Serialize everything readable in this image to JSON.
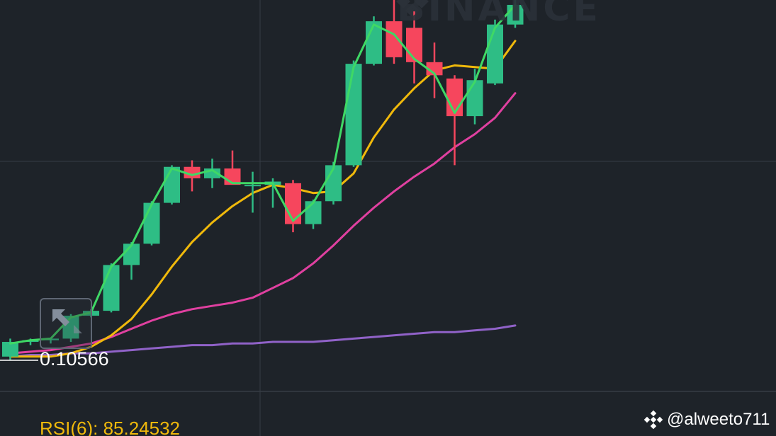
{
  "watermark": {
    "text": "BINANCE"
  },
  "price_label": "0.10566",
  "indicator": {
    "rsi_label": "RSI(6): 85.24532"
  },
  "handle": {
    "text": "@alweeto711"
  },
  "colors": {
    "background": "#1e2329",
    "up": "#2ebd85",
    "down": "#f6465d",
    "ma_fast": "#3fd865",
    "ma_mid": "#f0b90b",
    "ma_slow": "#e040a0",
    "ma_long": "#9062c8",
    "grid": "#363c45"
  },
  "chart_data": {
    "type": "candlestick",
    "candles": [
      {
        "o": 0.1057,
        "h": 0.1068,
        "l": 0.1055,
        "c": 0.1066
      },
      {
        "o": 0.1066,
        "h": 0.1068,
        "l": 0.1064,
        "c": 0.1067
      },
      {
        "o": 0.1067,
        "h": 0.1068,
        "l": 0.1065,
        "c": 0.1068
      },
      {
        "o": 0.1068,
        "h": 0.1083,
        "l": 0.1066,
        "c": 0.1082
      },
      {
        "o": 0.1082,
        "h": 0.1086,
        "l": 0.1081,
        "c": 0.1085
      },
      {
        "o": 0.1085,
        "h": 0.1114,
        "l": 0.1084,
        "c": 0.1113
      },
      {
        "o": 0.1113,
        "h": 0.1127,
        "l": 0.1104,
        "c": 0.1126
      },
      {
        "o": 0.1126,
        "h": 0.1152,
        "l": 0.1125,
        "c": 0.1151
      },
      {
        "o": 0.1151,
        "h": 0.1174,
        "l": 0.115,
        "c": 0.1173
      },
      {
        "o": 0.1173,
        "h": 0.1177,
        "l": 0.1158,
        "c": 0.1166
      },
      {
        "o": 0.1166,
        "h": 0.1178,
        "l": 0.116,
        "c": 0.1172
      },
      {
        "o": 0.1172,
        "h": 0.1183,
        "l": 0.1163,
        "c": 0.1162
      },
      {
        "o": 0.1162,
        "h": 0.117,
        "l": 0.1145,
        "c": 0.1162
      },
      {
        "o": 0.1162,
        "h": 0.1166,
        "l": 0.1148,
        "c": 0.1164
      },
      {
        "o": 0.1163,
        "h": 0.1165,
        "l": 0.1133,
        "c": 0.1138
      },
      {
        "o": 0.1138,
        "h": 0.1153,
        "l": 0.1135,
        "c": 0.1152
      },
      {
        "o": 0.1152,
        "h": 0.1176,
        "l": 0.115,
        "c": 0.1174
      },
      {
        "o": 0.1174,
        "h": 0.1238,
        "l": 0.1173,
        "c": 0.1236
      },
      {
        "o": 0.1236,
        "h": 0.1265,
        "l": 0.1235,
        "c": 0.1262
      },
      {
        "o": 0.1262,
        "h": 0.1275,
        "l": 0.1236,
        "c": 0.124
      },
      {
        "o": 0.1258,
        "h": 0.1268,
        "l": 0.1224,
        "c": 0.1237
      },
      {
        "o": 0.1237,
        "h": 0.1249,
        "l": 0.1215,
        "c": 0.1229
      },
      {
        "o": 0.1227,
        "h": 0.1229,
        "l": 0.1174,
        "c": 0.1204
      },
      {
        "o": 0.1204,
        "h": 0.1233,
        "l": 0.1199,
        "c": 0.1226
      },
      {
        "o": 0.1224,
        "h": 0.1263,
        "l": 0.1223,
        "c": 0.126
      },
      {
        "o": 0.126,
        "h": 0.1275,
        "l": 0.1258,
        "c": 0.1272
      }
    ],
    "ma_fast": [
      0.1065,
      0.1067,
      0.1068,
      0.1081,
      0.1084,
      0.1112,
      0.1125,
      0.115,
      0.1172,
      0.1168,
      0.1171,
      0.1163,
      0.1163,
      0.1163,
      0.114,
      0.1151,
      0.1172,
      0.1234,
      0.126,
      0.1254,
      0.1239,
      0.123,
      0.1206,
      0.1225,
      0.1258,
      0.1272
    ],
    "ma_mid": [
      0.1057,
      0.1057,
      0.1057,
      0.1059,
      0.1063,
      0.107,
      0.108,
      0.1095,
      0.1112,
      0.1127,
      0.1139,
      0.1149,
      0.1157,
      0.1162,
      0.116,
      0.1157,
      0.1158,
      0.1169,
      0.1191,
      0.1208,
      0.1221,
      0.1232,
      0.1235,
      0.1234,
      0.1233,
      0.125
    ],
    "ma_slow": [
      0.1059,
      0.106,
      0.1061,
      0.1063,
      0.1065,
      0.1069,
      0.1074,
      0.1079,
      0.1083,
      0.1086,
      0.1088,
      0.109,
      0.1093,
      0.1099,
      0.1105,
      0.1114,
      0.1125,
      0.1137,
      0.1148,
      0.1158,
      0.1167,
      0.1175,
      0.1185,
      0.1193,
      0.1203,
      0.1218
    ],
    "ma_long": [
      0.1057,
      0.1058,
      0.1058,
      0.1059,
      0.1059,
      0.106,
      0.1061,
      0.1062,
      0.1063,
      0.1064,
      0.1064,
      0.1065,
      0.1065,
      0.1066,
      0.1066,
      0.1066,
      0.1067,
      0.1068,
      0.1069,
      0.107,
      0.1071,
      0.1072,
      0.1072,
      0.1073,
      0.1074,
      0.1076
    ],
    "current_price": 0.10566
  }
}
